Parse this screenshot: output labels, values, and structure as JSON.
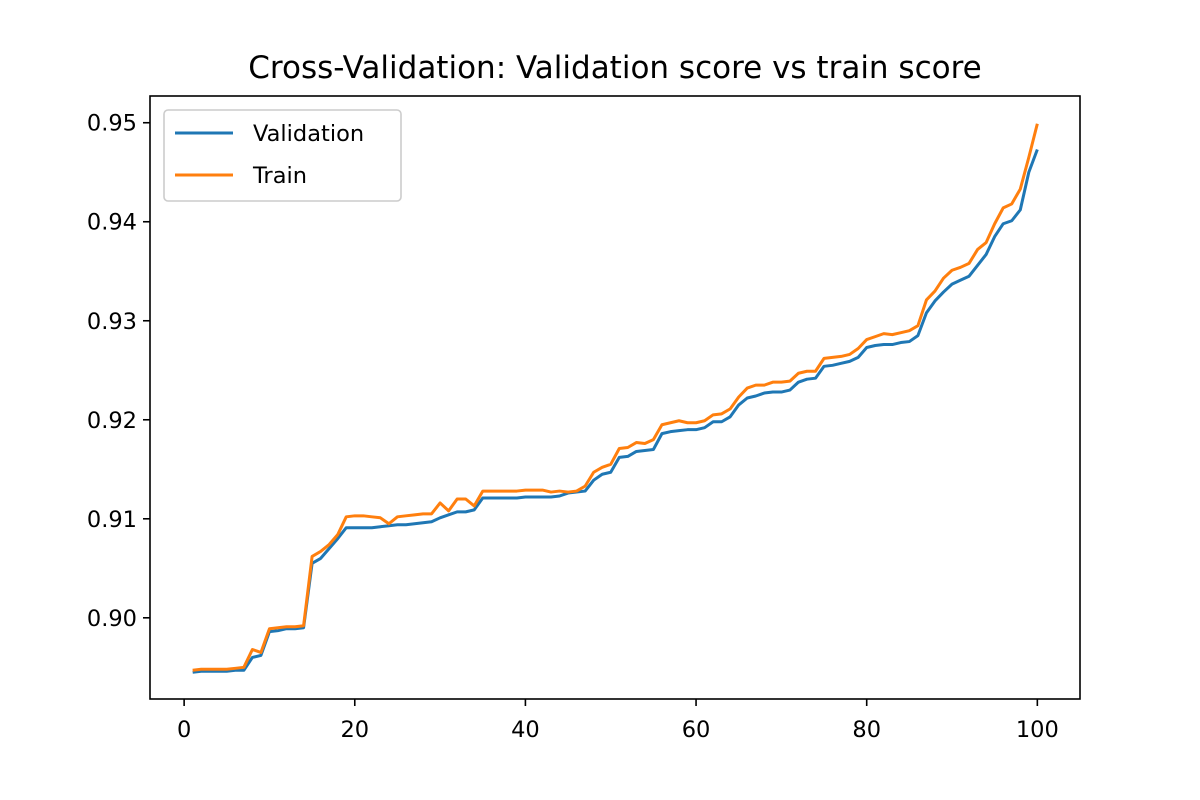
{
  "chart_data": {
    "type": "line",
    "title": "Cross-Validation: Validation score vs train score",
    "xlabel": "",
    "ylabel": "",
    "xlim": [
      -4,
      105
    ],
    "ylim": [
      0.8918,
      0.9527
    ],
    "xticks": [
      0,
      20,
      40,
      60,
      80,
      100
    ],
    "yticks": [
      0.9,
      0.91,
      0.92,
      0.93,
      0.94,
      0.95
    ],
    "xtick_labels": [
      "0",
      "20",
      "40",
      "60",
      "80",
      "100"
    ],
    "ytick_labels": [
      "0.90",
      "0.91",
      "0.92",
      "0.93",
      "0.94",
      "0.95"
    ],
    "grid": false,
    "legend_position": "upper left",
    "x": [
      1,
      2,
      3,
      4,
      5,
      6,
      7,
      8,
      9,
      10,
      11,
      12,
      13,
      14,
      15,
      16,
      17,
      18,
      19,
      20,
      21,
      22,
      23,
      24,
      25,
      26,
      27,
      28,
      29,
      30,
      31,
      32,
      33,
      34,
      35,
      36,
      37,
      38,
      39,
      40,
      41,
      42,
      43,
      44,
      45,
      46,
      47,
      48,
      49,
      50,
      51,
      52,
      53,
      54,
      55,
      56,
      57,
      58,
      59,
      60,
      61,
      62,
      63,
      64,
      65,
      66,
      67,
      68,
      69,
      70,
      71,
      72,
      73,
      74,
      75,
      76,
      77,
      78,
      79,
      80,
      81,
      82,
      83,
      84,
      85,
      86,
      87,
      88,
      89,
      90,
      91,
      92,
      93,
      94,
      95,
      96,
      97,
      98,
      99,
      100
    ],
    "series": [
      {
        "name": "Validation",
        "color": "#1f77b4",
        "values": [
          0.8945,
          0.8946,
          0.8946,
          0.8946,
          0.8946,
          0.8947,
          0.8947,
          0.896,
          0.8962,
          0.8986,
          0.8987,
          0.8989,
          0.8989,
          0.899,
          0.9055,
          0.906,
          0.907,
          0.908,
          0.9091,
          0.9091,
          0.9091,
          0.9091,
          0.9092,
          0.9093,
          0.9094,
          0.9094,
          0.9095,
          0.9096,
          0.9097,
          0.9101,
          0.9104,
          0.9107,
          0.9107,
          0.9109,
          0.9121,
          0.9121,
          0.9121,
          0.9121,
          0.9121,
          0.9122,
          0.9122,
          0.9122,
          0.9122,
          0.9123,
          0.9126,
          0.9127,
          0.9128,
          0.9139,
          0.9145,
          0.9147,
          0.9162,
          0.9163,
          0.9168,
          0.9169,
          0.917,
          0.9186,
          0.9188,
          0.9189,
          0.919,
          0.919,
          0.9192,
          0.9198,
          0.9198,
          0.9203,
          0.9215,
          0.9222,
          0.9224,
          0.9227,
          0.9228,
          0.9228,
          0.923,
          0.9238,
          0.9241,
          0.9242,
          0.9254,
          0.9255,
          0.9257,
          0.9259,
          0.9263,
          0.9273,
          0.9275,
          0.9276,
          0.9276,
          0.9278,
          0.9279,
          0.9285,
          0.9308,
          0.932,
          0.9329,
          0.9337,
          0.9341,
          0.9345,
          0.9356,
          0.9367,
          0.9385,
          0.9398,
          0.9401,
          0.9412,
          0.945,
          0.9473
        ]
      },
      {
        "name": "Train",
        "color": "#ff7f0e",
        "values": [
          0.8947,
          0.8948,
          0.8948,
          0.8948,
          0.8948,
          0.8949,
          0.895,
          0.8968,
          0.8965,
          0.8989,
          0.899,
          0.8991,
          0.8991,
          0.8992,
          0.9062,
          0.9067,
          0.9074,
          0.9084,
          0.9102,
          0.9103,
          0.9103,
          0.9102,
          0.9101,
          0.9095,
          0.9102,
          0.9103,
          0.9104,
          0.9105,
          0.9105,
          0.9116,
          0.9108,
          0.912,
          0.912,
          0.9113,
          0.9128,
          0.9128,
          0.9128,
          0.9128,
          0.9128,
          0.9129,
          0.9129,
          0.9129,
          0.9127,
          0.9128,
          0.9127,
          0.9128,
          0.9133,
          0.9147,
          0.9152,
          0.9155,
          0.9171,
          0.9172,
          0.9177,
          0.9176,
          0.918,
          0.9195,
          0.9197,
          0.9199,
          0.9197,
          0.9197,
          0.9199,
          0.9205,
          0.9206,
          0.9211,
          0.9223,
          0.9232,
          0.9235,
          0.9235,
          0.9238,
          0.9238,
          0.9239,
          0.9247,
          0.9249,
          0.9249,
          0.9262,
          0.9263,
          0.9264,
          0.9266,
          0.9272,
          0.9281,
          0.9284,
          0.9287,
          0.9286,
          0.9288,
          0.929,
          0.9295,
          0.9321,
          0.933,
          0.9343,
          0.9351,
          0.9354,
          0.9358,
          0.9372,
          0.9379,
          0.9398,
          0.9414,
          0.9418,
          0.9433,
          0.9465,
          0.9499
        ]
      }
    ]
  }
}
